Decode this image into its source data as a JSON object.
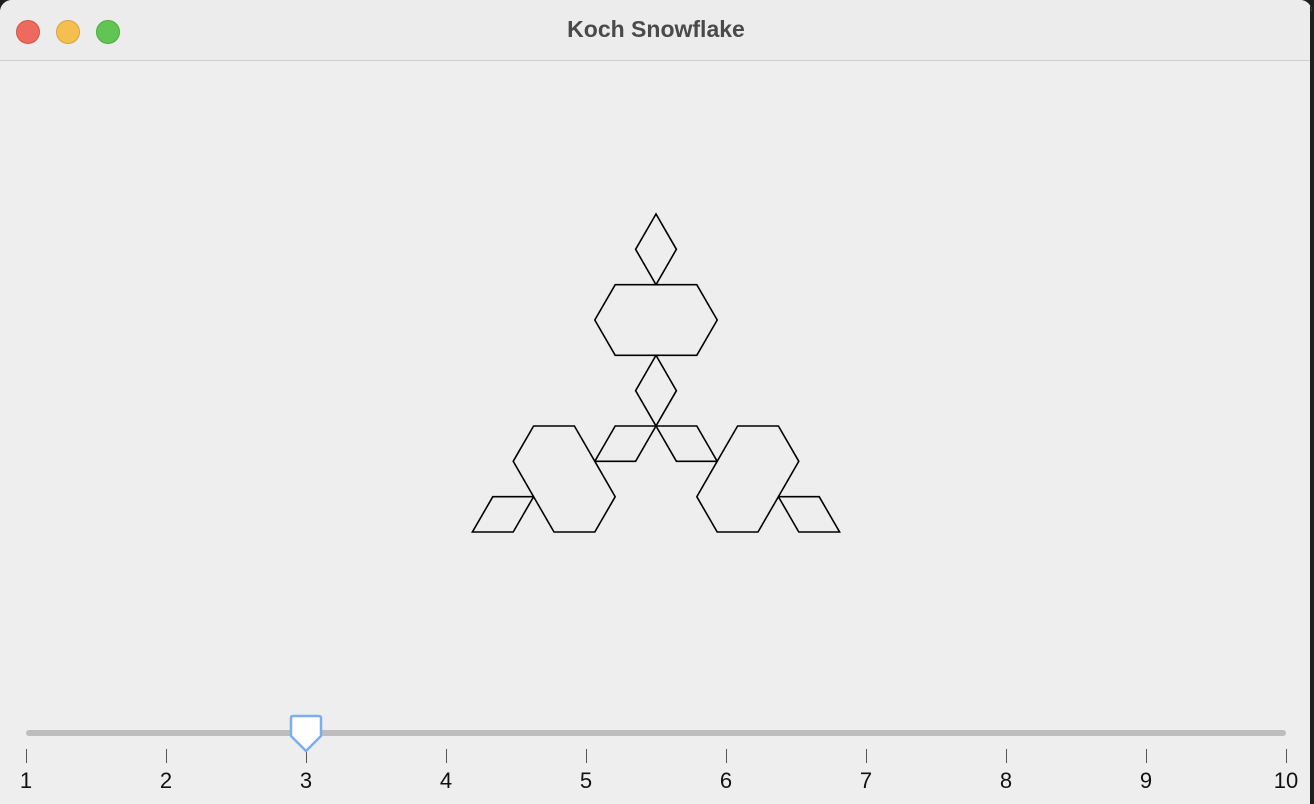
{
  "window": {
    "title": "Koch Snowflake"
  },
  "slider": {
    "min": 1,
    "max": 10,
    "value": 3,
    "tick_labels": [
      "1",
      "2",
      "3",
      "4",
      "5",
      "6",
      "7",
      "8",
      "9",
      "10"
    ]
  },
  "colors": {
    "window_bg": "#eeeeee",
    "close": "#ec6a5e",
    "minimize": "#f4bf4f",
    "zoom": "#61c554",
    "thumb_border": "#7aaef0",
    "fractal_stroke": "#000000"
  },
  "icons": {
    "close": "close-icon",
    "minimize": "minimize-icon",
    "zoom": "zoom-icon"
  }
}
